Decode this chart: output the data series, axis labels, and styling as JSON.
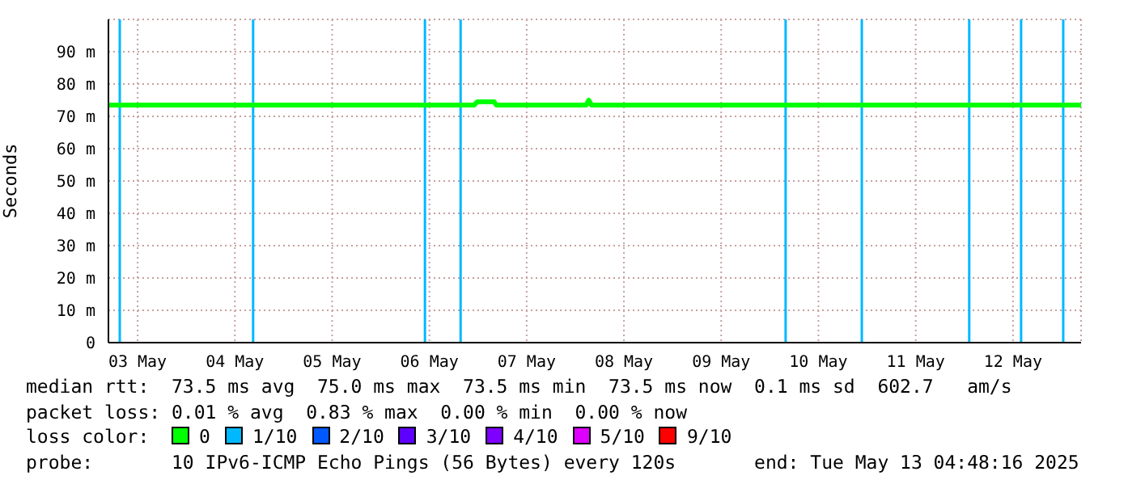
{
  "chart_data": {
    "type": "line",
    "ylabel": "Seconds",
    "xlim": [
      "2025-05-03T04:48",
      "2025-05-13T04:48"
    ],
    "xticks": [
      {
        "value": "2025-05-03T12:00",
        "label": "03 May"
      },
      {
        "value": "2025-05-04T12:00",
        "label": "04 May"
      },
      {
        "value": "2025-05-05T12:00",
        "label": "05 May"
      },
      {
        "value": "2025-05-06T12:00",
        "label": "06 May"
      },
      {
        "value": "2025-05-07T12:00",
        "label": "07 May"
      },
      {
        "value": "2025-05-08T12:00",
        "label": "08 May"
      },
      {
        "value": "2025-05-09T12:00",
        "label": "09 May"
      },
      {
        "value": "2025-05-10T12:00",
        "label": "10 May"
      },
      {
        "value": "2025-05-11T12:00",
        "label": "11 May"
      },
      {
        "value": "2025-05-12T12:00",
        "label": "12 May"
      }
    ],
    "ylim": [
      0,
      100
    ],
    "yticks": [
      0,
      {
        "value": 10,
        "label": "10 m"
      },
      {
        "value": 20,
        "label": "20 m"
      },
      {
        "value": 30,
        "label": "30 m"
      },
      {
        "value": 40,
        "label": "40 m"
      },
      {
        "value": 50,
        "label": "50 m"
      },
      {
        "value": 60,
        "label": "60 m"
      },
      {
        "value": 70,
        "label": "70 m"
      },
      {
        "value": 80,
        "label": "80 m"
      },
      {
        "value": 90,
        "label": "90 m"
      }
    ],
    "grid": true,
    "legend": "bottom",
    "legend_title": "loss color:",
    "x": [
      "2025-05-03T04:48",
      "2025-05-05T00:00",
      "2025-05-06T23:00",
      "2025-05-06T23:50",
      "2025-05-07T04:00",
      "2025-05-07T04:30",
      "2025-05-08T02:40",
      "2025-05-08T03:20",
      "2025-05-08T04:00",
      "2025-05-10T00:00",
      "2025-05-13T04:48"
    ],
    "series": [
      {
        "name": "0",
        "color": "#00ff00",
        "values": [
          73.5,
          73.5,
          73.5,
          74.5,
          74.5,
          73.5,
          73.5,
          75.0,
          73.5,
          73.5,
          73.5
        ]
      },
      {
        "name": "1/10",
        "color": "#00b8ff",
        "values": [
          null,
          null,
          null,
          null,
          null,
          null,
          null,
          null,
          null,
          null,
          null
        ]
      },
      {
        "name": "2/10",
        "color": "#0059ff",
        "values": [
          null,
          null,
          null,
          null,
          null,
          null,
          null,
          null,
          null,
          null,
          null
        ]
      },
      {
        "name": "3/10",
        "color": "#5e00ff",
        "values": [
          null,
          null,
          null,
          null,
          null,
          null,
          null,
          null,
          null,
          null,
          null
        ]
      },
      {
        "name": "4/10",
        "color": "#7e00ff",
        "values": [
          null,
          null,
          null,
          null,
          null,
          null,
          null,
          null,
          null,
          null,
          null
        ]
      },
      {
        "name": "5/10",
        "color": "#dd00ff",
        "values": [
          null,
          null,
          null,
          null,
          null,
          null,
          null,
          null,
          null,
          null,
          null
        ]
      },
      {
        "name": "9/10",
        "color": "#ff0000",
        "values": [
          null,
          null,
          null,
          null,
          null,
          null,
          null,
          null,
          null,
          null,
          null
        ]
      }
    ],
    "ref_lines": [
      {
        "axis": "x",
        "value": "2025-05-03T07:36",
        "color": "#00b8ff"
      },
      {
        "axis": "x",
        "value": "2025-05-04T16:30",
        "color": "#00b8ff"
      },
      {
        "axis": "x",
        "value": "2025-05-06T10:54",
        "color": "#00b8ff"
      },
      {
        "axis": "x",
        "value": "2025-05-06T19:42",
        "color": "#00b8ff"
      },
      {
        "axis": "x",
        "value": "2025-05-10T03:54",
        "color": "#00b8ff"
      },
      {
        "axis": "x",
        "value": "2025-05-10T22:42",
        "color": "#00b8ff"
      },
      {
        "axis": "x",
        "value": "2025-05-12T01:12",
        "color": "#00b8ff"
      },
      {
        "axis": "x",
        "value": "2025-05-12T14:00",
        "color": "#00b8ff"
      },
      {
        "axis": "x",
        "value": "2025-05-13T00:24",
        "color": "#00b8ff"
      }
    ],
    "annotations": [
      "median rtt:  73.5 ms avg  75.0 ms max  73.5 ms min  73.5 ms now  0.1 ms sd  602.7   am/s",
      "packet loss: 0.01 % avg  0.83 % max  0.00 % min  0.00 % now",
      "probe:       10 IPv6-ICMP Echo Pings (56 Bytes) every 120s       end: Tue May 13 04:48:16 2025"
    ]
  }
}
